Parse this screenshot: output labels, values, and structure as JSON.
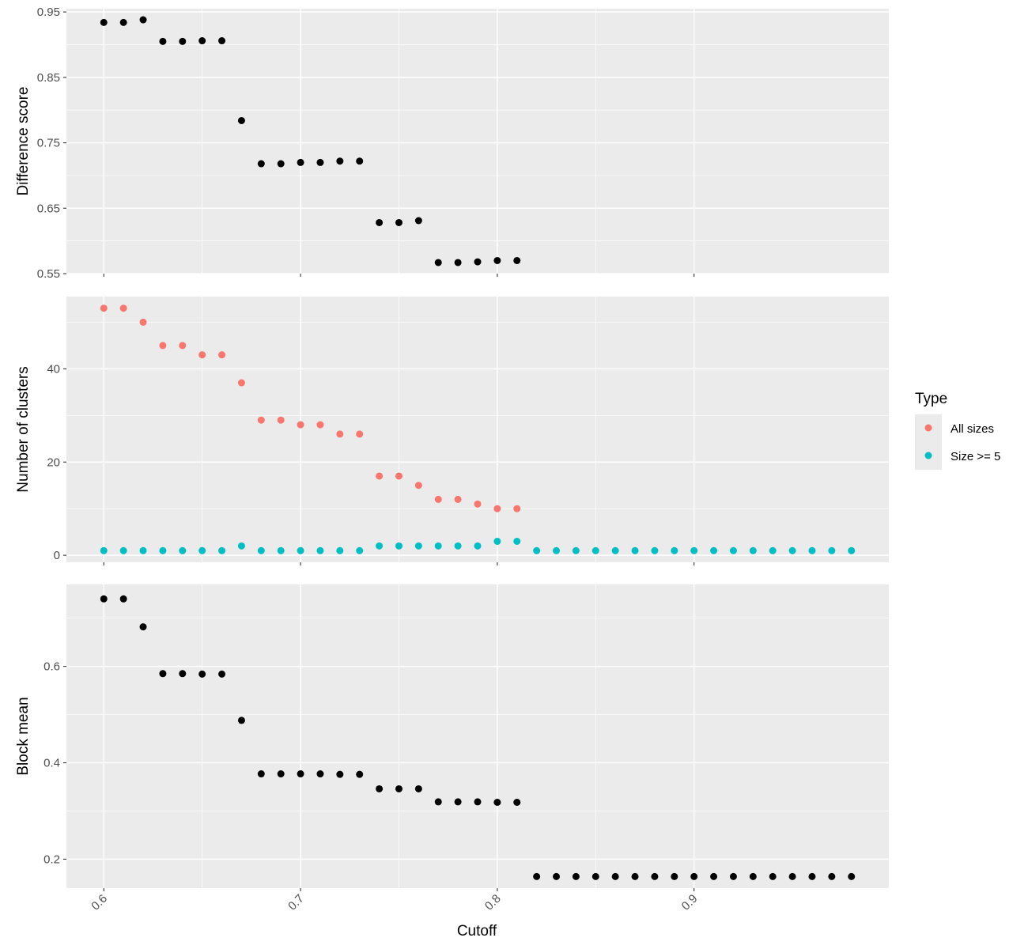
{
  "chart_data": {
    "type": "scatter",
    "xlabel": "Cutoff",
    "x_ticks": [
      0.6,
      0.7,
      0.8,
      0.9
    ],
    "x_tick_labels": [
      "0.6",
      "0.7",
      "0.8",
      "0.9"
    ],
    "xlim": [
      0.581,
      0.999
    ],
    "grid": true,
    "legend": {
      "title": "Type",
      "position": "right",
      "entries": [
        {
          "label": "All sizes",
          "color": "#F8766D"
        },
        {
          "label": "Size >= 5",
          "color": "#00BFC4"
        }
      ]
    },
    "colors": {
      "panel_bg": "#EBEBEB",
      "grid": "#FFFFFF",
      "point_default": "#000000",
      "all_sizes": "#F8766D",
      "size_ge_5": "#00BFC4"
    },
    "panels": [
      {
        "ylabel": "Difference score",
        "ylim": [
          0.55,
          0.955
        ],
        "y_ticks": [
          0.55,
          0.65,
          0.75,
          0.85,
          0.95
        ],
        "y_tick_labels": [
          "0.55",
          "0.65",
          "0.75",
          "0.85",
          "0.95"
        ],
        "series": [
          {
            "color": "#000000",
            "x": [
              0.6,
              0.61,
              0.62,
              0.63,
              0.64,
              0.65,
              0.66,
              0.67,
              0.68,
              0.69,
              0.7,
              0.71,
              0.72,
              0.73,
              0.74,
              0.75,
              0.76,
              0.77,
              0.78,
              0.79,
              0.8,
              0.81
            ],
            "y": [
              0.934,
              0.934,
              0.938,
              0.905,
              0.905,
              0.906,
              0.906,
              0.784,
              0.718,
              0.718,
              0.72,
              0.72,
              0.722,
              0.722,
              0.628,
              0.628,
              0.631,
              0.567,
              0.567,
              0.568,
              0.57,
              0.57
            ]
          }
        ]
      },
      {
        "ylabel": "Number of clusters",
        "ylim": [
          -1.5,
          55.5
        ],
        "y_ticks": [
          0,
          20,
          40
        ],
        "y_tick_labels": [
          "0",
          "20",
          "40"
        ],
        "series": [
          {
            "name": "All sizes",
            "color": "#F8766D",
            "x": [
              0.6,
              0.61,
              0.62,
              0.63,
              0.64,
              0.65,
              0.66,
              0.67,
              0.68,
              0.69,
              0.7,
              0.71,
              0.72,
              0.73,
              0.74,
              0.75,
              0.76,
              0.77,
              0.78,
              0.79,
              0.8,
              0.81
            ],
            "y": [
              53,
              53,
              50,
              45,
              45,
              43,
              43,
              37,
              29,
              29,
              28,
              28,
              26,
              26,
              17,
              17,
              15,
              12,
              12,
              11,
              10,
              10
            ]
          },
          {
            "name": "Size >= 5",
            "color": "#00BFC4",
            "x": [
              0.6,
              0.61,
              0.62,
              0.63,
              0.64,
              0.65,
              0.66,
              0.67,
              0.68,
              0.69,
              0.7,
              0.71,
              0.72,
              0.73,
              0.74,
              0.75,
              0.76,
              0.77,
              0.78,
              0.79,
              0.8,
              0.81,
              0.82,
              0.83,
              0.84,
              0.85,
              0.86,
              0.87,
              0.88,
              0.89,
              0.9,
              0.91,
              0.92,
              0.93,
              0.94,
              0.95,
              0.96,
              0.97,
              0.98
            ],
            "y": [
              1,
              1,
              1,
              1,
              1,
              1,
              1,
              2,
              1,
              1,
              1,
              1,
              1,
              1,
              2,
              2,
              2,
              2,
              2,
              2,
              3,
              3,
              1,
              1,
              1,
              1,
              1,
              1,
              1,
              1,
              1,
              1,
              1,
              1,
              1,
              1,
              1,
              1,
              1
            ]
          }
        ]
      },
      {
        "ylabel": "Block mean",
        "ylim": [
          0.14,
          0.77
        ],
        "y_ticks": [
          0.2,
          0.4,
          0.6
        ],
        "y_tick_labels": [
          "0.2",
          "0.4",
          "0.6"
        ],
        "series": [
          {
            "color": "#000000",
            "x": [
              0.6,
              0.61,
              0.62,
              0.63,
              0.64,
              0.65,
              0.66,
              0.67,
              0.68,
              0.69,
              0.7,
              0.71,
              0.72,
              0.73,
              0.74,
              0.75,
              0.76,
              0.77,
              0.78,
              0.79,
              0.8,
              0.81,
              0.82,
              0.83,
              0.84,
              0.85,
              0.86,
              0.87,
              0.88,
              0.89,
              0.9,
              0.91,
              0.92,
              0.93,
              0.94,
              0.95,
              0.96,
              0.97,
              0.98
            ],
            "y": [
              0.74,
              0.74,
              0.682,
              0.585,
              0.585,
              0.584,
              0.584,
              0.488,
              0.377,
              0.377,
              0.377,
              0.377,
              0.376,
              0.376,
              0.346,
              0.346,
              0.346,
              0.319,
              0.319,
              0.319,
              0.318,
              0.318,
              0.164,
              0.164,
              0.164,
              0.164,
              0.164,
              0.164,
              0.164,
              0.164,
              0.164,
              0.164,
              0.164,
              0.164,
              0.164,
              0.164,
              0.164,
              0.164,
              0.164
            ]
          }
        ]
      }
    ]
  }
}
